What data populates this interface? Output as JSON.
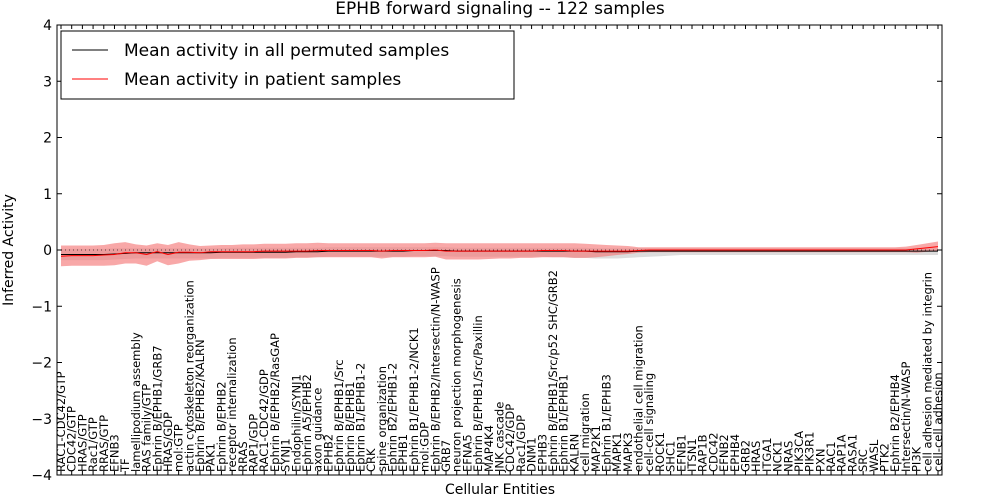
{
  "chart_data": {
    "type": "line",
    "title": "EPHB forward signaling -- 122 samples",
    "xlabel": "Cellular Entities",
    "ylabel": "Inferred Activity",
    "ylim": [
      -4,
      4
    ],
    "yticks": [
      -4,
      -3,
      -2,
      -1,
      0,
      1,
      2,
      3,
      4
    ],
    "grid": false,
    "legend_position": "top-left",
    "categories": [
      "RAC1-CDC42/GTP",
      "CDC42/GTP",
      "HRAS/GTP",
      "Rac1/GTP",
      "RRAS/GTP",
      "EFNB3",
      "TF",
      "lamellipodium assembly",
      "RAS family/GTP",
      "Ephrin B/EPHB1/GRB7",
      "HRAS/GDP",
      "mol:GTP",
      "actin cytoskeleton reorganization",
      "Ephrin B/EPHB2/KALRN",
      "PAK1",
      "Ephrin B/EPHB2",
      "receptor internalization",
      "RRAS",
      "RAP1/GDP",
      "RAC1-CDC42/GDP",
      "Ephrin B/EPHB2/RasGAP",
      "SYNJ1",
      "Endophilin/SYNJ1",
      "Ephrin A5/EPHB2",
      "axon guidance",
      "EPHB2",
      "Ephrin B/EPHB1/Src",
      "Ephrin B/EPHB1",
      "Ephrin B1/EPHB1-2",
      "CRK",
      "spine organization",
      "Ephrin B2/EPHB1-2",
      "EPHB1",
      "Ephrin B1/EPHB1-2/NCK1",
      "mol:GDP",
      "Ephrin B/EPHB2/Intersectin/N-WASP",
      "GRB7",
      "neuron projection morphogenesis",
      "EFNA5",
      "Ephrin B/EPHB1/Src/Paxillin",
      "MAP4K4",
      "JNK cascade",
      "CDC42/GDP",
      "Rac1/GDP",
      "DNM1",
      "EPHB3",
      "Ephrin B/EPHB1/Src/p52 SHC/GRB2",
      "Ephrin B1/EPHB1",
      "KALRN",
      "cell migration",
      "MAP2K1",
      "Ephrin B1/EPHB3",
      "MAPK1",
      "MAPK3",
      "endothelial cell migration",
      "cell-cell signaling",
      "ROCK1",
      "SHC1",
      "EFNB1",
      "ITSN1",
      "RAP1B",
      "CDC42",
      "EFNB2",
      "EPHB4",
      "GRB2",
      "HRAS",
      "ITGA1",
      "NCK1",
      "NRAS",
      "PIK3CA",
      "PIK3R1",
      "PXN",
      "RAC1",
      "RAP1A",
      "RASA1",
      "SRC",
      "WASL",
      "PTK2",
      "Ephrin B2/EPHB4",
      "Intersectin/N-WASP",
      "PI3K",
      "cell adhesion mediated by integrin",
      "cell-cell adhesion"
    ],
    "series": [
      {
        "name": "Mean activity in all permuted samples",
        "color": "#000000",
        "band_color": "#c0c0c0",
        "values": [
          -0.08,
          -0.08,
          -0.08,
          -0.08,
          -0.08,
          -0.07,
          -0.06,
          -0.05,
          -0.05,
          -0.05,
          -0.05,
          -0.05,
          -0.05,
          -0.05,
          -0.05,
          -0.04,
          -0.04,
          -0.04,
          -0.04,
          -0.04,
          -0.04,
          -0.04,
          -0.03,
          -0.03,
          -0.03,
          -0.02,
          -0.02,
          -0.02,
          -0.02,
          -0.02,
          -0.02,
          -0.02,
          -0.02,
          -0.01,
          -0.01,
          -0.01,
          -0.01,
          -0.02,
          -0.02,
          -0.02,
          -0.02,
          -0.02,
          -0.02,
          -0.02,
          -0.02,
          -0.02,
          -0.02,
          -0.02,
          -0.02,
          -0.02,
          -0.03,
          -0.03,
          -0.03,
          -0.03,
          -0.02,
          -0.02,
          -0.02,
          -0.02,
          -0.02,
          -0.02,
          -0.02,
          -0.02,
          -0.02,
          -0.02,
          -0.02,
          -0.02,
          -0.02,
          -0.02,
          -0.02,
          -0.02,
          -0.02,
          -0.02,
          -0.02,
          -0.02,
          -0.02,
          -0.02,
          -0.02,
          -0.02,
          -0.02,
          -0.02,
          -0.02,
          -0.02,
          -0.02
        ],
        "band_upper": [
          0.02,
          0.02,
          0.02,
          0.02,
          0.02,
          0.03,
          0.03,
          0.03,
          0.03,
          0.03,
          0.03,
          0.03,
          0.03,
          0.03,
          0.03,
          0.03,
          0.04,
          0.04,
          0.04,
          0.04,
          0.04,
          0.04,
          0.04,
          0.04,
          0.04,
          0.05,
          0.05,
          0.05,
          0.05,
          0.05,
          0.05,
          0.05,
          0.05,
          0.05,
          0.05,
          0.05,
          0.05,
          0.04,
          0.04,
          0.04,
          0.04,
          0.04,
          0.04,
          0.04,
          0.04,
          0.04,
          0.04,
          0.04,
          0.04,
          0.04,
          0.03,
          0.03,
          0.03,
          0.03,
          0.03,
          0.03,
          0.03,
          0.03,
          0.03,
          0.03,
          0.03,
          0.03,
          0.03,
          0.03,
          0.03,
          0.03,
          0.03,
          0.03,
          0.03,
          0.03,
          0.03,
          0.03,
          0.03,
          0.03,
          0.03,
          0.03,
          0.03,
          0.03,
          0.03,
          0.03,
          0.03,
          0.03,
          0.03
        ],
        "band_lower": [
          -0.18,
          -0.18,
          -0.18,
          -0.18,
          -0.18,
          -0.17,
          -0.16,
          -0.15,
          -0.15,
          -0.15,
          -0.15,
          -0.15,
          -0.15,
          -0.15,
          -0.15,
          -0.14,
          -0.14,
          -0.14,
          -0.14,
          -0.14,
          -0.14,
          -0.14,
          -0.13,
          -0.13,
          -0.13,
          -0.12,
          -0.12,
          -0.12,
          -0.12,
          -0.12,
          -0.12,
          -0.12,
          -0.12,
          -0.11,
          -0.11,
          -0.11,
          -0.11,
          -0.12,
          -0.12,
          -0.12,
          -0.12,
          -0.12,
          -0.12,
          -0.12,
          -0.12,
          -0.12,
          -0.13,
          -0.13,
          -0.14,
          -0.14,
          -0.15,
          -0.15,
          -0.15,
          -0.14,
          -0.13,
          -0.12,
          -0.11,
          -0.1,
          -0.09,
          -0.09,
          -0.09,
          -0.09,
          -0.09,
          -0.09,
          -0.09,
          -0.09,
          -0.09,
          -0.09,
          -0.09,
          -0.09,
          -0.09,
          -0.09,
          -0.09,
          -0.09,
          -0.09,
          -0.09,
          -0.09,
          -0.09,
          -0.09,
          -0.09,
          -0.09,
          -0.09,
          -0.09
        ]
      },
      {
        "name": "Mean activity in patient samples",
        "color": "#ff0000",
        "band_color": "#f47a7a",
        "values": [
          -0.11,
          -0.1,
          -0.1,
          -0.1,
          -0.09,
          -0.08,
          -0.05,
          -0.05,
          -0.08,
          -0.03,
          -0.08,
          -0.04,
          -0.04,
          -0.05,
          -0.03,
          -0.03,
          -0.03,
          -0.03,
          -0.03,
          -0.02,
          -0.02,
          -0.02,
          -0.02,
          -0.02,
          -0.01,
          -0.01,
          -0.01,
          -0.01,
          -0.01,
          -0.01,
          -0.02,
          -0.01,
          -0.01,
          -0.01,
          -0.01,
          0.0,
          -0.02,
          -0.02,
          -0.02,
          -0.02,
          -0.02,
          -0.02,
          -0.02,
          -0.02,
          -0.02,
          -0.01,
          -0.01,
          -0.01,
          -0.02,
          -0.02,
          -0.02,
          -0.02,
          -0.02,
          -0.02,
          -0.01,
          0.0,
          0.0,
          0.0,
          0.0,
          0.0,
          0.0,
          0.0,
          0.0,
          0.0,
          0.0,
          0.0,
          0.0,
          0.0,
          0.0,
          0.0,
          0.0,
          0.0,
          0.0,
          0.0,
          0.0,
          0.0,
          0.0,
          0.0,
          0.0,
          0.0,
          0.02,
          0.04,
          0.06
        ],
        "band_upper": [
          0.08,
          0.08,
          0.08,
          0.08,
          0.09,
          0.12,
          0.14,
          0.1,
          0.08,
          0.12,
          0.09,
          0.14,
          0.1,
          0.07,
          0.08,
          0.09,
          0.09,
          0.1,
          0.1,
          0.11,
          0.11,
          0.11,
          0.12,
          0.12,
          0.13,
          0.12,
          0.12,
          0.12,
          0.12,
          0.12,
          0.12,
          0.12,
          0.12,
          0.12,
          0.12,
          0.13,
          0.12,
          0.12,
          0.12,
          0.12,
          0.12,
          0.12,
          0.12,
          0.12,
          0.12,
          0.12,
          0.12,
          0.12,
          0.12,
          0.11,
          0.1,
          0.09,
          0.08,
          0.07,
          0.05,
          0.05,
          0.05,
          0.05,
          0.05,
          0.05,
          0.05,
          0.05,
          0.05,
          0.05,
          0.05,
          0.05,
          0.05,
          0.05,
          0.05,
          0.05,
          0.05,
          0.05,
          0.05,
          0.05,
          0.05,
          0.05,
          0.05,
          0.05,
          0.05,
          0.06,
          0.09,
          0.12,
          0.15
        ],
        "band_lower": [
          -0.29,
          -0.28,
          -0.28,
          -0.28,
          -0.28,
          -0.27,
          -0.24,
          -0.24,
          -0.28,
          -0.2,
          -0.27,
          -0.24,
          -0.19,
          -0.18,
          -0.16,
          -0.16,
          -0.16,
          -0.16,
          -0.16,
          -0.15,
          -0.15,
          -0.15,
          -0.14,
          -0.14,
          -0.13,
          -0.13,
          -0.13,
          -0.13,
          -0.13,
          -0.13,
          -0.15,
          -0.13,
          -0.13,
          -0.13,
          -0.13,
          -0.12,
          -0.17,
          -0.17,
          -0.17,
          -0.17,
          -0.16,
          -0.15,
          -0.15,
          -0.14,
          -0.14,
          -0.13,
          -0.13,
          -0.13,
          -0.14,
          -0.14,
          -0.13,
          -0.11,
          -0.09,
          -0.07,
          -0.05,
          -0.04,
          -0.04,
          -0.04,
          -0.04,
          -0.04,
          -0.04,
          -0.04,
          -0.04,
          -0.04,
          -0.04,
          -0.04,
          -0.04,
          -0.04,
          -0.04,
          -0.04,
          -0.04,
          -0.04,
          -0.04,
          -0.04,
          -0.04,
          -0.04,
          -0.04,
          -0.04,
          -0.04,
          -0.04,
          -0.05,
          -0.03,
          -0.02
        ]
      }
    ]
  }
}
